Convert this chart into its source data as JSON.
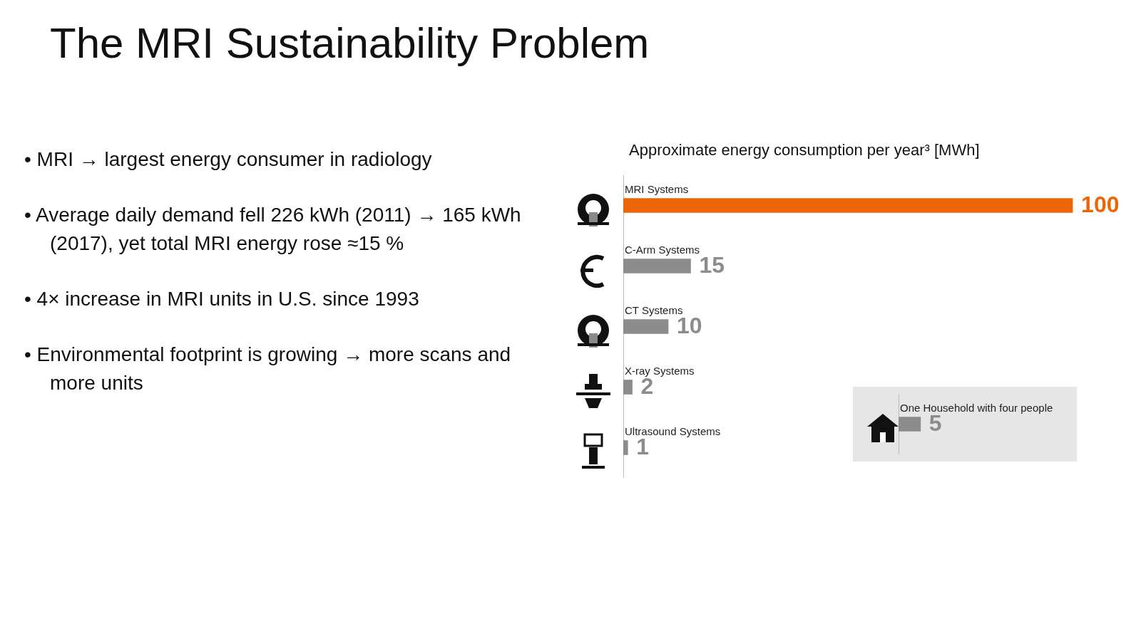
{
  "chart_data": [
    {
      "type": "bar",
      "orientation": "horizontal",
      "title": "The MRI Sustainability Problem",
      "subtitle": "Approximate energy consumption per year³ [MWh]",
      "categories": [
        "MRI Systems",
        "C-Arm Systems",
        "CT Systems",
        "X-ray Systems",
        "Ultrasound Systems"
      ],
      "values": [
        100,
        15,
        10,
        2,
        1
      ],
      "colors": [
        "#ec6608",
        "#8c8c8c",
        "#8c8c8c",
        "#8c8c8c",
        "#8c8c8c"
      ],
      "data_labels": true,
      "tick_labels": "y",
      "legend": false,
      "annotations": [
        "• MRI → largest energy consumer in radiology",
        "• Average daily demand fell 226 kWh (2011) → 165 kWh (2017), yet total MRI energy rose ≈15 %",
        "• 4× increase in MRI units in U.S. since 1993",
        "• Environmental footprint is growing → more scans and more units"
      ]
    },
    {
      "type": "bar",
      "orientation": "horizontal",
      "categories": [
        "One Household with four people"
      ],
      "values": [
        5
      ],
      "colors": [
        "#8c8c8c"
      ],
      "data_labels": true,
      "tick_labels": "y",
      "legend": false
    }
  ]
}
